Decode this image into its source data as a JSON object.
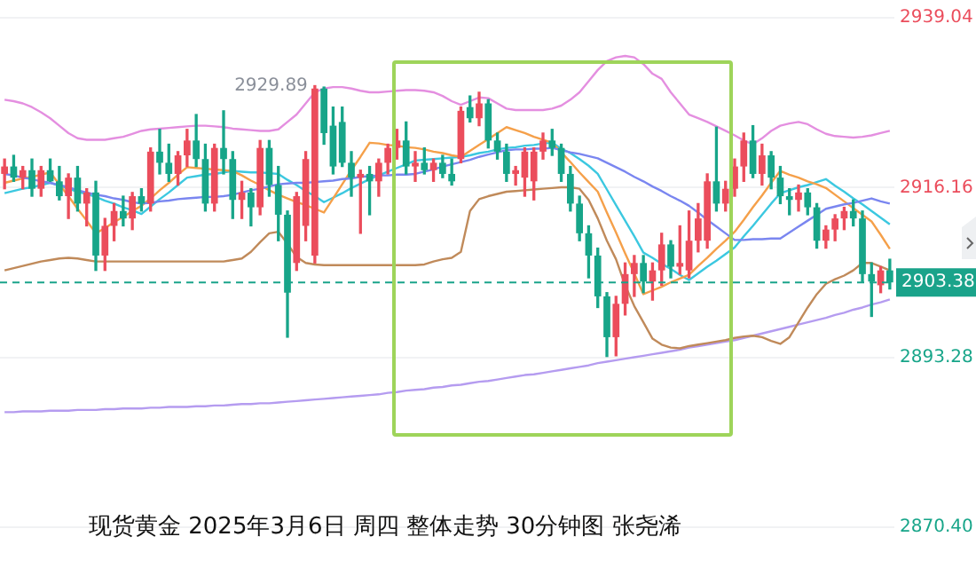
{
  "chart_data": {
    "type": "candlestick",
    "title": "现货黄金 2025年3月6日 周四 整体走势 30分钟图 张尧浠",
    "categories": [
      null,
      null,
      null,
      null,
      null,
      null,
      null,
      null,
      null,
      null,
      null,
      null,
      null,
      null,
      null,
      null,
      null,
      null,
      null,
      null,
      null,
      null,
      null,
      null,
      null,
      null,
      null,
      null,
      null,
      null,
      null,
      null,
      null,
      null,
      null,
      null,
      null,
      null,
      null,
      null,
      null,
      null,
      null,
      null,
      null,
      null,
      null,
      null,
      null,
      null,
      null,
      null,
      null,
      null,
      null,
      null,
      null,
      null,
      null,
      null,
      null,
      null,
      null,
      null,
      null,
      null,
      null,
      null,
      null,
      null,
      null,
      null,
      null,
      null,
      null,
      null,
      null,
      null,
      null,
      null,
      null,
      null,
      null,
      null,
      null,
      null,
      null,
      null,
      null,
      null,
      null,
      null,
      null,
      null,
      null,
      null,
      null,
      null
    ],
    "ohlc": [
      [
        2918,
        2920,
        2916,
        2919
      ],
      [
        2919,
        2920.5,
        2917,
        2917.5
      ],
      [
        2917.5,
        2919,
        2916,
        2918.5
      ],
      [
        2918.5,
        2920,
        2915,
        2916
      ],
      [
        2916,
        2919,
        2915,
        2918.5
      ],
      [
        2918.5,
        2920,
        2917,
        2917
      ],
      [
        2917,
        2919,
        2914.5,
        2915
      ],
      [
        2915,
        2918,
        2912,
        2917.5
      ],
      [
        2917.5,
        2919,
        2913,
        2914
      ],
      [
        2914,
        2916,
        2911,
        2915.5
      ],
      [
        2915.5,
        2917,
        2905,
        2907
      ],
      [
        2907,
        2912,
        2905,
        2911
      ],
      [
        2911,
        2914,
        2909,
        2913
      ],
      [
        2913,
        2915,
        2911,
        2912
      ],
      [
        2912,
        2915.5,
        2910.5,
        2915
      ],
      [
        2915,
        2916,
        2913,
        2914
      ],
      [
        2914,
        2921.5,
        2913,
        2921
      ],
      [
        2921,
        2924,
        2918,
        2919.5
      ],
      [
        2919.5,
        2922,
        2917,
        2918
      ],
      [
        2918,
        2921,
        2916.5,
        2920.5
      ],
      [
        2920.5,
        2924,
        2919,
        2922.5
      ],
      [
        2922.5,
        2926,
        2919,
        2920
      ],
      [
        2920,
        2922,
        2913,
        2914
      ],
      [
        2914,
        2922,
        2913,
        2921.5
      ],
      [
        2921.5,
        2926.5,
        2918,
        2920
      ],
      [
        2920,
        2921,
        2912,
        2914.5
      ],
      [
        2914.5,
        2917,
        2912,
        2915.5
      ],
      [
        2915.5,
        2916,
        2911,
        2913.5
      ],
      [
        2913.5,
        2922.5,
        2912.5,
        2921.5
      ],
      [
        2921.5,
        2922.5,
        2915,
        2916.5
      ],
      [
        2916.5,
        2919,
        2909,
        2912.5
      ],
      [
        2912.5,
        2913,
        2896,
        2902
      ],
      [
        2906,
        2915.5,
        2905,
        2915
      ],
      [
        2911,
        2921,
        2909,
        2920
      ],
      [
        2907,
        2929.89,
        2906,
        2929.5
      ],
      [
        2929.5,
        2929.7,
        2922,
        2923.5
      ],
      [
        2924.5,
        2927,
        2918,
        2919
      ],
      [
        2925,
        2927,
        2919,
        2919.5
      ],
      [
        2919.5,
        2921,
        2915,
        2917.5
      ],
      [
        2917.5,
        2918.5,
        2910,
        2918
      ],
      [
        2918,
        2919,
        2912.5,
        2917
      ],
      [
        2917,
        2920,
        2915,
        2919.5
      ],
      [
        2919.5,
        2922,
        2918,
        2921.5
      ],
      [
        2921.5,
        2924,
        2920,
        2922.5
      ],
      [
        2922.5,
        2925,
        2918,
        2919
      ],
      [
        2919,
        2921,
        2917,
        2919.5
      ],
      [
        2919.5,
        2921.5,
        2918,
        2918.5
      ],
      [
        2918.5,
        2920,
        2917,
        2919.5
      ],
      [
        2919.5,
        2920.5,
        2917.5,
        2918
      ],
      [
        2918,
        2920,
        2916.5,
        2917
      ],
      [
        2920,
        2927,
        2919.5,
        2926.5
      ],
      [
        2927,
        2928.5,
        2925,
        2925.5
      ],
      [
        2925.5,
        2929,
        2924.5,
        2927.5
      ],
      [
        2927.5,
        2928,
        2921.5,
        2922.5
      ],
      [
        2922.5,
        2923.5,
        2920,
        2921
      ],
      [
        2921,
        2922,
        2917,
        2918
      ],
      [
        2918,
        2919,
        2916.5,
        2918.5
      ],
      [
        2917.5,
        2921.5,
        2915,
        2921
      ],
      [
        2917,
        2921.5,
        2914.5,
        2921
      ],
      [
        2921,
        2923.5,
        2920,
        2922.5
      ],
      [
        2922.5,
        2924,
        2920.5,
        2921.5
      ],
      [
        2921.5,
        2922,
        2917,
        2918
      ],
      [
        2918,
        2919,
        2913,
        2914
      ],
      [
        2914,
        2915,
        2909,
        2910
      ],
      [
        2910,
        2911,
        2904,
        2907
      ],
      [
        2907,
        2908,
        2900,
        2901.5
      ],
      [
        2901.5,
        2902,
        2893.4,
        2896
      ],
      [
        2896,
        2901.5,
        2893.5,
        2900.5
      ],
      [
        2900.5,
        2906,
        2899,
        2904.5
      ],
      [
        2904.5,
        2907,
        2901.5,
        2906
      ],
      [
        2906,
        2907,
        2902,
        2903.5
      ],
      [
        2903.5,
        2906,
        2901,
        2905
      ],
      [
        2905,
        2910,
        2903,
        2908.5
      ],
      [
        2908.5,
        2909,
        2904,
        2905.5
      ],
      [
        2905.5,
        2911,
        2904.5,
        2906
      ],
      [
        2905,
        2913,
        2904,
        2909
      ],
      [
        2909,
        2914,
        2907.5,
        2912
      ],
      [
        2909,
        2918,
        2908,
        2917
      ],
      [
        2917,
        2924.3,
        2913,
        2914
      ],
      [
        2914,
        2917,
        2913,
        2916
      ],
      [
        2916,
        2920,
        2915,
        2919
      ],
      [
        2919,
        2923.5,
        2917,
        2922.5
      ],
      [
        2922.5,
        2924.5,
        2917.5,
        2918
      ],
      [
        2918,
        2922,
        2916.5,
        2920.5
      ],
      [
        2920.5,
        2921,
        2916,
        2917.5
      ],
      [
        2917.5,
        2919,
        2914,
        2915
      ],
      [
        2915,
        2916,
        2912.5,
        2914.5
      ],
      [
        2914.5,
        2916.5,
        2913,
        2915.5
      ],
      [
        2915.5,
        2916,
        2912.5,
        2913.5
      ],
      [
        2913.5,
        2914,
        2908,
        2909
      ],
      [
        2909,
        2911,
        2908,
        2910.5
      ],
      [
        2910.5,
        2912.5,
        2909,
        2912
      ],
      [
        2912,
        2913.5,
        2910.5,
        2913
      ],
      [
        2913,
        2914.5,
        2911,
        2912
      ],
      [
        2912,
        2913,
        2903.5,
        2904.5
      ],
      [
        2904.5,
        2906,
        2898.8,
        2903.5
      ],
      [
        2903,
        2905.5,
        2902,
        2905
      ],
      [
        2905,
        2906.5,
        2902.5,
        2903.38
      ]
    ],
    "colors": [
      "#eb4d5c",
      "#17a589",
      "#eb4d5c",
      "#17a589",
      "#eb4d5c",
      "#17a589",
      "#17a589",
      "#eb4d5c",
      "#17a589",
      "#eb4d5c",
      "#17a589",
      "#eb4d5c",
      "#eb4d5c",
      "#17a589",
      "#eb4d5c",
      "#17a589",
      "#eb4d5c",
      "#17a589",
      "#17a589",
      "#eb4d5c",
      "#eb4d5c",
      "#17a589",
      "#17a589",
      "#eb4d5c",
      "#17a589",
      "#17a589",
      "#eb4d5c",
      "#17a589",
      "#eb4d5c",
      "#17a589",
      "#17a589",
      "#17a589",
      "#eb4d5c",
      "#eb4d5c",
      "#eb4d5c",
      "#17a589",
      "#17a589",
      "#17a589",
      "#17a589",
      "#eb4d5c",
      "#17a589",
      "#eb4d5c",
      "#eb4d5c",
      "#eb4d5c",
      "#17a589",
      "#eb4d5c",
      "#17a589",
      "#eb4d5c",
      "#17a589",
      "#17a589",
      "#eb4d5c",
      "#17a589",
      "#eb4d5c",
      "#17a589",
      "#17a589",
      "#17a589",
      "#eb4d5c",
      "#eb4d5c",
      "#eb4d5c",
      "#eb4d5c",
      "#17a589",
      "#17a589",
      "#17a589",
      "#17a589",
      "#17a589",
      "#17a589",
      "#17a589",
      "#eb4d5c",
      "#eb4d5c",
      "#eb4d5c",
      "#17a589",
      "#eb4d5c",
      "#eb4d5c",
      "#17a589",
      "#eb4d5c",
      "#eb4d5c",
      "#eb4d5c",
      "#eb4d5c",
      "#17a589",
      "#eb4d5c",
      "#eb4d5c",
      "#eb4d5c",
      "#17a589",
      "#eb4d5c",
      "#17a589",
      "#17a589",
      "#17a589",
      "#eb4d5c",
      "#17a589",
      "#17a589",
      "#eb4d5c",
      "#eb4d5c",
      "#eb4d5c",
      "#17a589",
      "#17a589",
      "#17a589",
      "#eb4d5c",
      "#17a589"
    ],
    "series": [
      {
        "type": "line",
        "color": "#e48fe0",
        "values": [
          2928,
          2927.8,
          2927.5,
          2927,
          2926.3,
          2925.5,
          2924.5,
          2923.5,
          2922.8,
          2922.6,
          2922.6,
          2922.6,
          2922.8,
          2923,
          2923.4,
          2923.8,
          2924,
          2924.1,
          2924.2,
          2924.3,
          2924.4,
          2924.5,
          2924.5,
          2924.4,
          2924.3,
          2924.1,
          2924,
          2923.9,
          2923.8,
          2923.8,
          2924,
          2925,
          2926,
          2927.5,
          2929,
          2929.5,
          2929.7,
          2929.7,
          2929.5,
          2929.2,
          2929,
          2929,
          2929.1,
          2929.2,
          2929.3,
          2929.3,
          2929.2,
          2929,
          2928.5,
          2927.8,
          2927.3,
          2927.8,
          2928.3,
          2928.2,
          2927.5,
          2926.8,
          2926.6,
          2926.6,
          2926.6,
          2926.6,
          2926.8,
          2927.2,
          2928,
          2929,
          2930.5,
          2932,
          2933.2,
          2933.7,
          2933.9,
          2933.7,
          2932.8,
          2931.5,
          2930.8,
          2929,
          2927.5,
          2926,
          2925.5,
          2925,
          2924.4,
          2923.8,
          2923.2,
          2922.5,
          2922,
          2922.8,
          2923.8,
          2924.5,
          2924.8,
          2925,
          2924.7,
          2924,
          2923.4,
          2923.1,
          2923,
          2922.9,
          2923,
          2923.2,
          2923.5,
          2923.8
        ]
      },
      {
        "type": "line",
        "color": "#c08a5a",
        "values": [
          2905,
          2905.3,
          2905.6,
          2905.9,
          2906.2,
          2906.4,
          2906.6,
          2906.7,
          2906.6,
          2906.4,
          2906.2,
          2906.2,
          2906.2,
          2906.2,
          2906.2,
          2906.2,
          2906.2,
          2906.2,
          2906.2,
          2906.2,
          2906.2,
          2906.2,
          2906.2,
          2906.2,
          2906.2,
          2906.4,
          2906.6,
          2907.5,
          2908.8,
          2910,
          2910.2,
          2908.6,
          2906.8,
          2906,
          2905.8,
          2905.7,
          2905.7,
          2905.7,
          2905.7,
          2905.7,
          2905.7,
          2905.7,
          2905.7,
          2905.7,
          2905.7,
          2905.7,
          2905.8,
          2906.2,
          2906.5,
          2906.7,
          2907.5,
          2913,
          2914.6,
          2915,
          2915.3,
          2915.6,
          2915.7,
          2915.8,
          2915.9,
          2916,
          2916.1,
          2916.2,
          2916.2,
          2916,
          2914.5,
          2912,
          2909,
          2906.5,
          2903,
          2900.2,
          2898,
          2895.8,
          2895,
          2894.6,
          2894.5,
          2894.8,
          2895,
          2895.2,
          2895.4,
          2895.6,
          2895.9,
          2896.1,
          2896.2,
          2896,
          2895.5,
          2895.1,
          2896,
          2898,
          2900,
          2901.8,
          2903.2,
          2903.8,
          2904.3,
          2905,
          2906,
          2906,
          2905.5,
          2905
        ]
      },
      {
        "type": "line",
        "color": "#b59cf0",
        "values": [
          2885.9,
          2885.9,
          2886,
          2886,
          2886,
          2886.1,
          2886.1,
          2886.1,
          2886.2,
          2886.2,
          2886.2,
          2886.3,
          2886.3,
          2886.4,
          2886.4,
          2886.4,
          2886.5,
          2886.5,
          2886.6,
          2886.6,
          2886.6,
          2886.7,
          2886.7,
          2886.8,
          2886.8,
          2886.9,
          2887,
          2887,
          2887.1,
          2887.1,
          2887.2,
          2887.3,
          2887.4,
          2887.5,
          2887.6,
          2887.7,
          2887.8,
          2887.9,
          2888,
          2888.1,
          2888.2,
          2888.3,
          2888.5,
          2888.6,
          2888.8,
          2888.9,
          2889,
          2889.2,
          2889.3,
          2889.5,
          2889.6,
          2889.8,
          2890,
          2890.1,
          2890.3,
          2890.5,
          2890.7,
          2890.9,
          2891,
          2891.2,
          2891.4,
          2891.6,
          2891.8,
          2892,
          2892.2,
          2892.5,
          2892.7,
          2892.9,
          2893.1,
          2893.3,
          2893.5,
          2893.7,
          2893.9,
          2894.1,
          2894.3,
          2894.6,
          2894.8,
          2895,
          2895.2,
          2895.4,
          2895.6,
          2895.9,
          2896.2,
          2896.5,
          2896.8,
          2897.1,
          2897.4,
          2897.7,
          2898,
          2898.3,
          2898.6,
          2899,
          2899.3,
          2899.7,
          2900,
          2900.4,
          2900.7,
          2901.1
        ]
      },
      {
        "type": "line",
        "color": "#7a86f0",
        "values": [
          2918,
          2917.8,
          2917.5,
          2917.3,
          2917,
          2916.8,
          2916.5,
          2916.2,
          2915.8,
          2915.5,
          2915.2,
          2915,
          2914.7,
          2914.5,
          2914.2,
          2914,
          2914.1,
          2914.3,
          2914.4,
          2914.6,
          2914.7,
          2914.8,
          2914.9,
          2914.9,
          2915,
          2915.2,
          2915.5,
          2915.8,
          2916,
          2916.3,
          2916.6,
          2916.7,
          2916.8,
          2916.8,
          2916.9,
          2917,
          2917.1,
          2917.3,
          2917.4,
          2917.6,
          2917.7,
          2917.8,
          2917.8,
          2917.9,
          2917.9,
          2918,
          2918.3,
          2918.6,
          2919,
          2919.3,
          2919.6,
          2919.9,
          2920.3,
          2920.6,
          2920.9,
          2921.2,
          2921.3,
          2921.3,
          2921.4,
          2921.4,
          2921.5,
          2921.2,
          2920.9,
          2920.7,
          2920.4,
          2920.1,
          2919.5,
          2918.9,
          2918.3,
          2917.6,
          2917,
          2916.3,
          2915.7,
          2915,
          2914.4,
          2913.7,
          2912.8,
          2911.8,
          2910.9,
          2910,
          2909.1,
          2909.1,
          2909.2,
          2909.2,
          2909.3,
          2909.3,
          2910.1,
          2910.9,
          2911.7,
          2912.5,
          2913.3,
          2913.6,
          2913.9,
          2914.1,
          2914.4,
          2914.7,
          2914.3,
          2914
        ]
      },
      {
        "type": "line",
        "color": "#f5a04a",
        "values": [
          2916.8,
          2917.1,
          2917.4,
          2917.6,
          2917.9,
          2918.2,
          2916.6,
          2915,
          2913.3,
          2911.7,
          2910,
          2910.7,
          2911.5,
          2912.2,
          2913,
          2913.7,
          2914.7,
          2915.8,
          2916.8,
          2917.9,
          2918.9,
          2918.8,
          2918.7,
          2918.6,
          2918.5,
          2918.4,
          2917.8,
          2917.1,
          2916.5,
          2915.8,
          2915.2,
          2914.7,
          2914.2,
          2913.8,
          2913.3,
          2912.8,
          2914.7,
          2916.6,
          2918.5,
          2920.3,
          2922.2,
          2922.1,
          2921.9,
          2921.8,
          2921.6,
          2921.5,
          2921.3,
          2921,
          2920.8,
          2920.5,
          2920.3,
          2921.1,
          2921.9,
          2922.7,
          2923.5,
          2924.3,
          2923.9,
          2923.5,
          2923,
          2922.6,
          2922.2,
          2920.9,
          2919.6,
          2918.2,
          2916.9,
          2915.6,
          2912.8,
          2910.1,
          2907.3,
          2904.6,
          2901.8,
          2902.3,
          2902.8,
          2903.4,
          2903.9,
          2904.4,
          2905.6,
          2906.7,
          2907.9,
          2909,
          2910.2,
          2911.8,
          2913.5,
          2915.1,
          2916.8,
          2918.4,
          2917.9,
          2917.5,
          2917,
          2916.6,
          2916.1,
          2915.2,
          2914.3,
          2913.4,
          2912.5,
          2911.6,
          2909.8,
          2907.9
        ]
      },
      {
        "type": "line",
        "color": "#3cc8e0",
        "values": [
          2915.4,
          2915.7,
          2916,
          2916.2,
          2916.5,
          2916.8,
          2916.4,
          2916,
          2915.6,
          2915.3,
          2914.9,
          2914.4,
          2914,
          2913.5,
          2913.1,
          2912.6,
          2913.6,
          2914.6,
          2915.5,
          2916.5,
          2917.5,
          2917.7,
          2917.9,
          2918,
          2918.2,
          2918.4,
          2918.3,
          2918.2,
          2918.2,
          2918.1,
          2918,
          2917.2,
          2916.5,
          2915.7,
          2915,
          2914.2,
          2914.8,
          2915.4,
          2916.1,
          2916.7,
          2917.3,
          2917.8,
          2918.3,
          2918.8,
          2919.3,
          2919.8,
          2919.9,
          2920,
          2920.1,
          2920.2,
          2920.3,
          2920.5,
          2920.8,
          2921,
          2921.3,
          2921.5,
          2921.6,
          2921.8,
          2921.9,
          2922.1,
          2922.2,
          2921.4,
          2920.8,
          2920,
          2919.1,
          2918,
          2915.9,
          2913.8,
          2911.7,
          2909.6,
          2907.4,
          2906.7,
          2905.9,
          2905.2,
          2904.4,
          2903.7,
          2904.6,
          2905.5,
          2906.3,
          2907.2,
          2908.1,
          2909.6,
          2911,
          2912.5,
          2914,
          2915.4,
          2915.8,
          2916.2,
          2916.5,
          2916.9,
          2917.3,
          2916.4,
          2915.6,
          2914.7,
          2913.9,
          2913,
          2912.1,
          2911.2
        ]
      }
    ],
    "ylim": [
      2870.4,
      2939.04
    ],
    "yticks": [
      2939.04,
      2916.16,
      2893.28,
      {
        "value": 2870.4,
        "label": "2870.40"
      }
    ],
    "tick_labels": "y",
    "grid": "y",
    "legend": false,
    "marker": "none",
    "line_style": "solid",
    "ref_lines": [
      {
        "axis": "y",
        "value": 2903.38,
        "label": "2903.38",
        "color": "#1aa38a",
        "line_style": "dashed"
      }
    ],
    "annotations": [
      "2929.89"
    ]
  }
}
